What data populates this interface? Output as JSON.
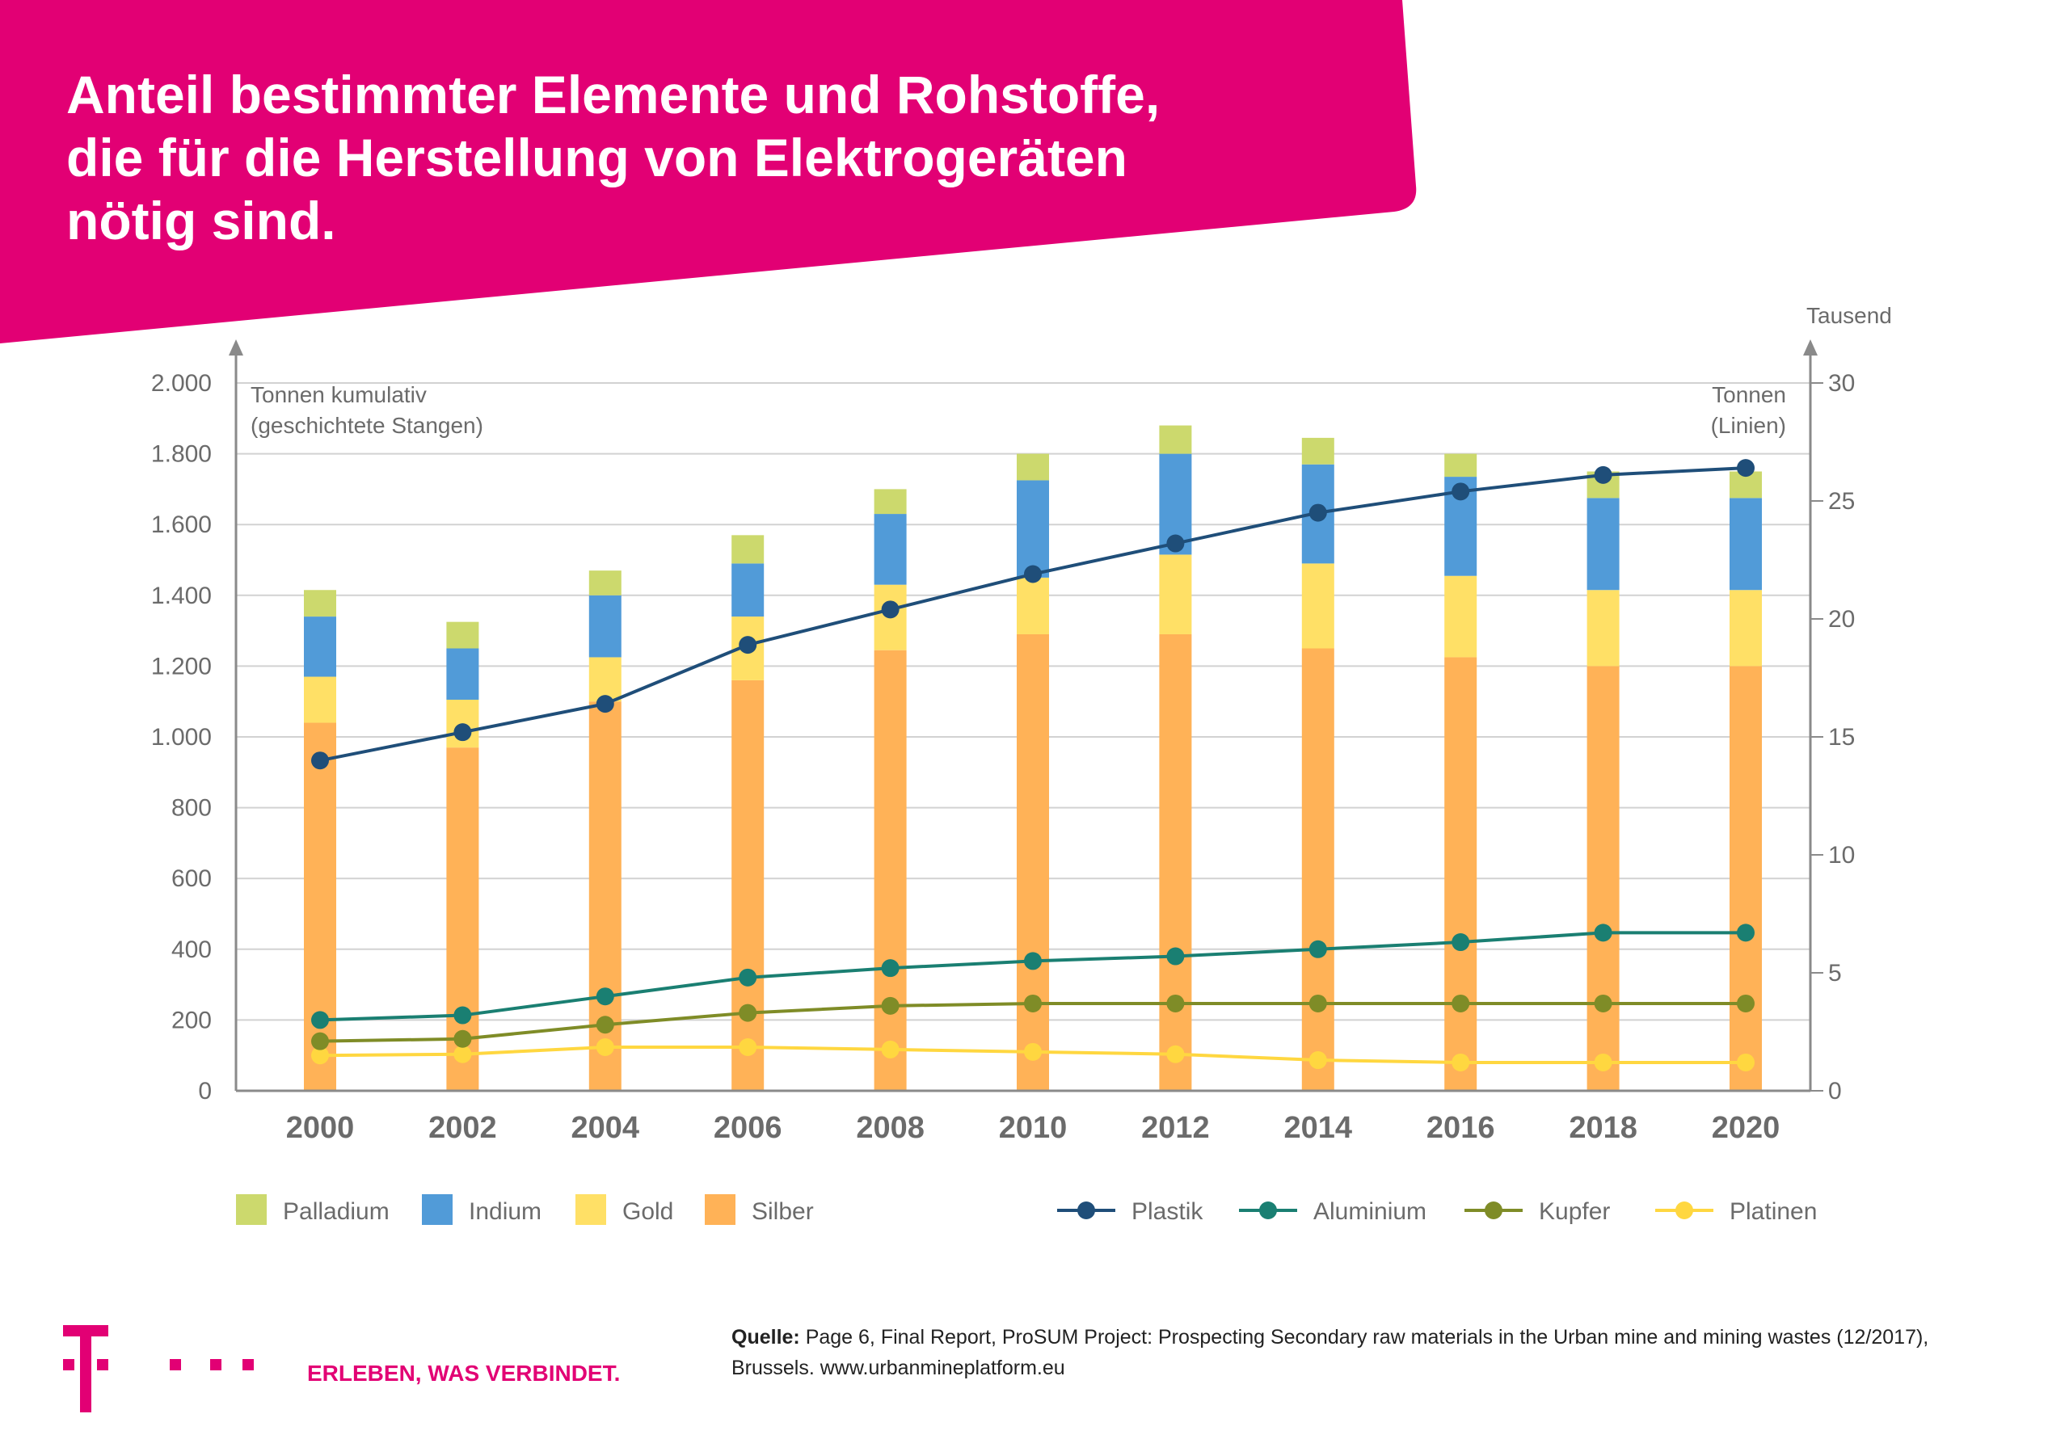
{
  "title": "Anteil bestimmter Elemente und Rohstoffe,\ndie für die Herstellung von Elektrogeräten\nnötig sind.",
  "brand_color": "#e20074",
  "chart_data": {
    "type": "bar+line",
    "categories": [
      "2000",
      "2002",
      "2004",
      "2006",
      "2008",
      "2010",
      "2012",
      "2014",
      "2016",
      "2018",
      "2020"
    ],
    "left_axis": {
      "label": [
        "Tonnen kumulativ",
        "(geschichtete Stangen)"
      ],
      "range": [
        0,
        2000
      ],
      "ticks": [
        0,
        200,
        400,
        600,
        800,
        1000,
        1200,
        1400,
        1600,
        1800,
        2000
      ],
      "tick_labels": [
        "0",
        "200",
        "400",
        "600",
        "800",
        "1.000",
        "1.200",
        "1.400",
        "1.600",
        "1.800",
        "2.000"
      ]
    },
    "right_axis": {
      "unit": "Tausend",
      "label": [
        "Tonnen",
        "(Linien)"
      ],
      "range": [
        0,
        30
      ],
      "ticks": [
        0,
        5,
        10,
        15,
        20,
        25,
        30
      ],
      "tick_labels": [
        "0",
        "5",
        "10",
        "15",
        "20",
        "25",
        "30"
      ]
    },
    "stacked_series": [
      {
        "name": "Silber",
        "color": "#ffb257",
        "values": [
          1040,
          970,
          1100,
          1160,
          1245,
          1290,
          1290,
          1250,
          1225,
          1200,
          1200
        ]
      },
      {
        "name": "Gold",
        "color": "#ffe066",
        "values": [
          130,
          135,
          125,
          180,
          185,
          160,
          225,
          240,
          230,
          215,
          215
        ]
      },
      {
        "name": "Indium",
        "color": "#519bd8",
        "values": [
          170,
          145,
          175,
          150,
          200,
          275,
          285,
          280,
          280,
          260,
          260
        ]
      },
      {
        "name": "Palladium",
        "color": "#ccd96d",
        "values": [
          75,
          75,
          70,
          80,
          70,
          75,
          80,
          75,
          65,
          75,
          75
        ]
      }
    ],
    "line_series": [
      {
        "name": "Plastik",
        "color": "#1f4e79",
        "values": [
          14.0,
          15.2,
          16.4,
          18.9,
          20.4,
          21.9,
          23.2,
          24.5,
          25.4,
          26.1,
          26.4
        ]
      },
      {
        "name": "Aluminium",
        "color": "#1a7f72",
        "values": [
          3.0,
          3.2,
          4.0,
          4.8,
          5.2,
          5.5,
          5.7,
          6.0,
          6.3,
          6.7,
          6.7
        ]
      },
      {
        "name": "Kupfer",
        "color": "#7f8c27",
        "values": [
          2.1,
          2.2,
          2.8,
          3.3,
          3.6,
          3.7,
          3.7,
          3.7,
          3.7,
          3.7,
          3.7
        ]
      },
      {
        "name": "Platinen",
        "color": "#ffd740",
        "values": [
          1.5,
          1.55,
          1.85,
          1.85,
          1.75,
          1.65,
          1.55,
          1.3,
          1.2,
          1.2,
          1.2
        ]
      }
    ],
    "legend_bars": [
      "Palladium",
      "Indium",
      "Gold",
      "Silber"
    ],
    "legend_lines": [
      "Plastik",
      "Aluminium",
      "Kupfer",
      "Platinen"
    ]
  },
  "footer": {
    "slogan": "ERLEBEN, WAS VERBINDET.",
    "source_label": "Quelle:",
    "source_text": " Page 6, Final Report, ProSUM Project: Prospecting Secondary raw materials in the Urban mine and mining wastes (12/2017), Brussels. www.urbanmineplatform.eu"
  }
}
